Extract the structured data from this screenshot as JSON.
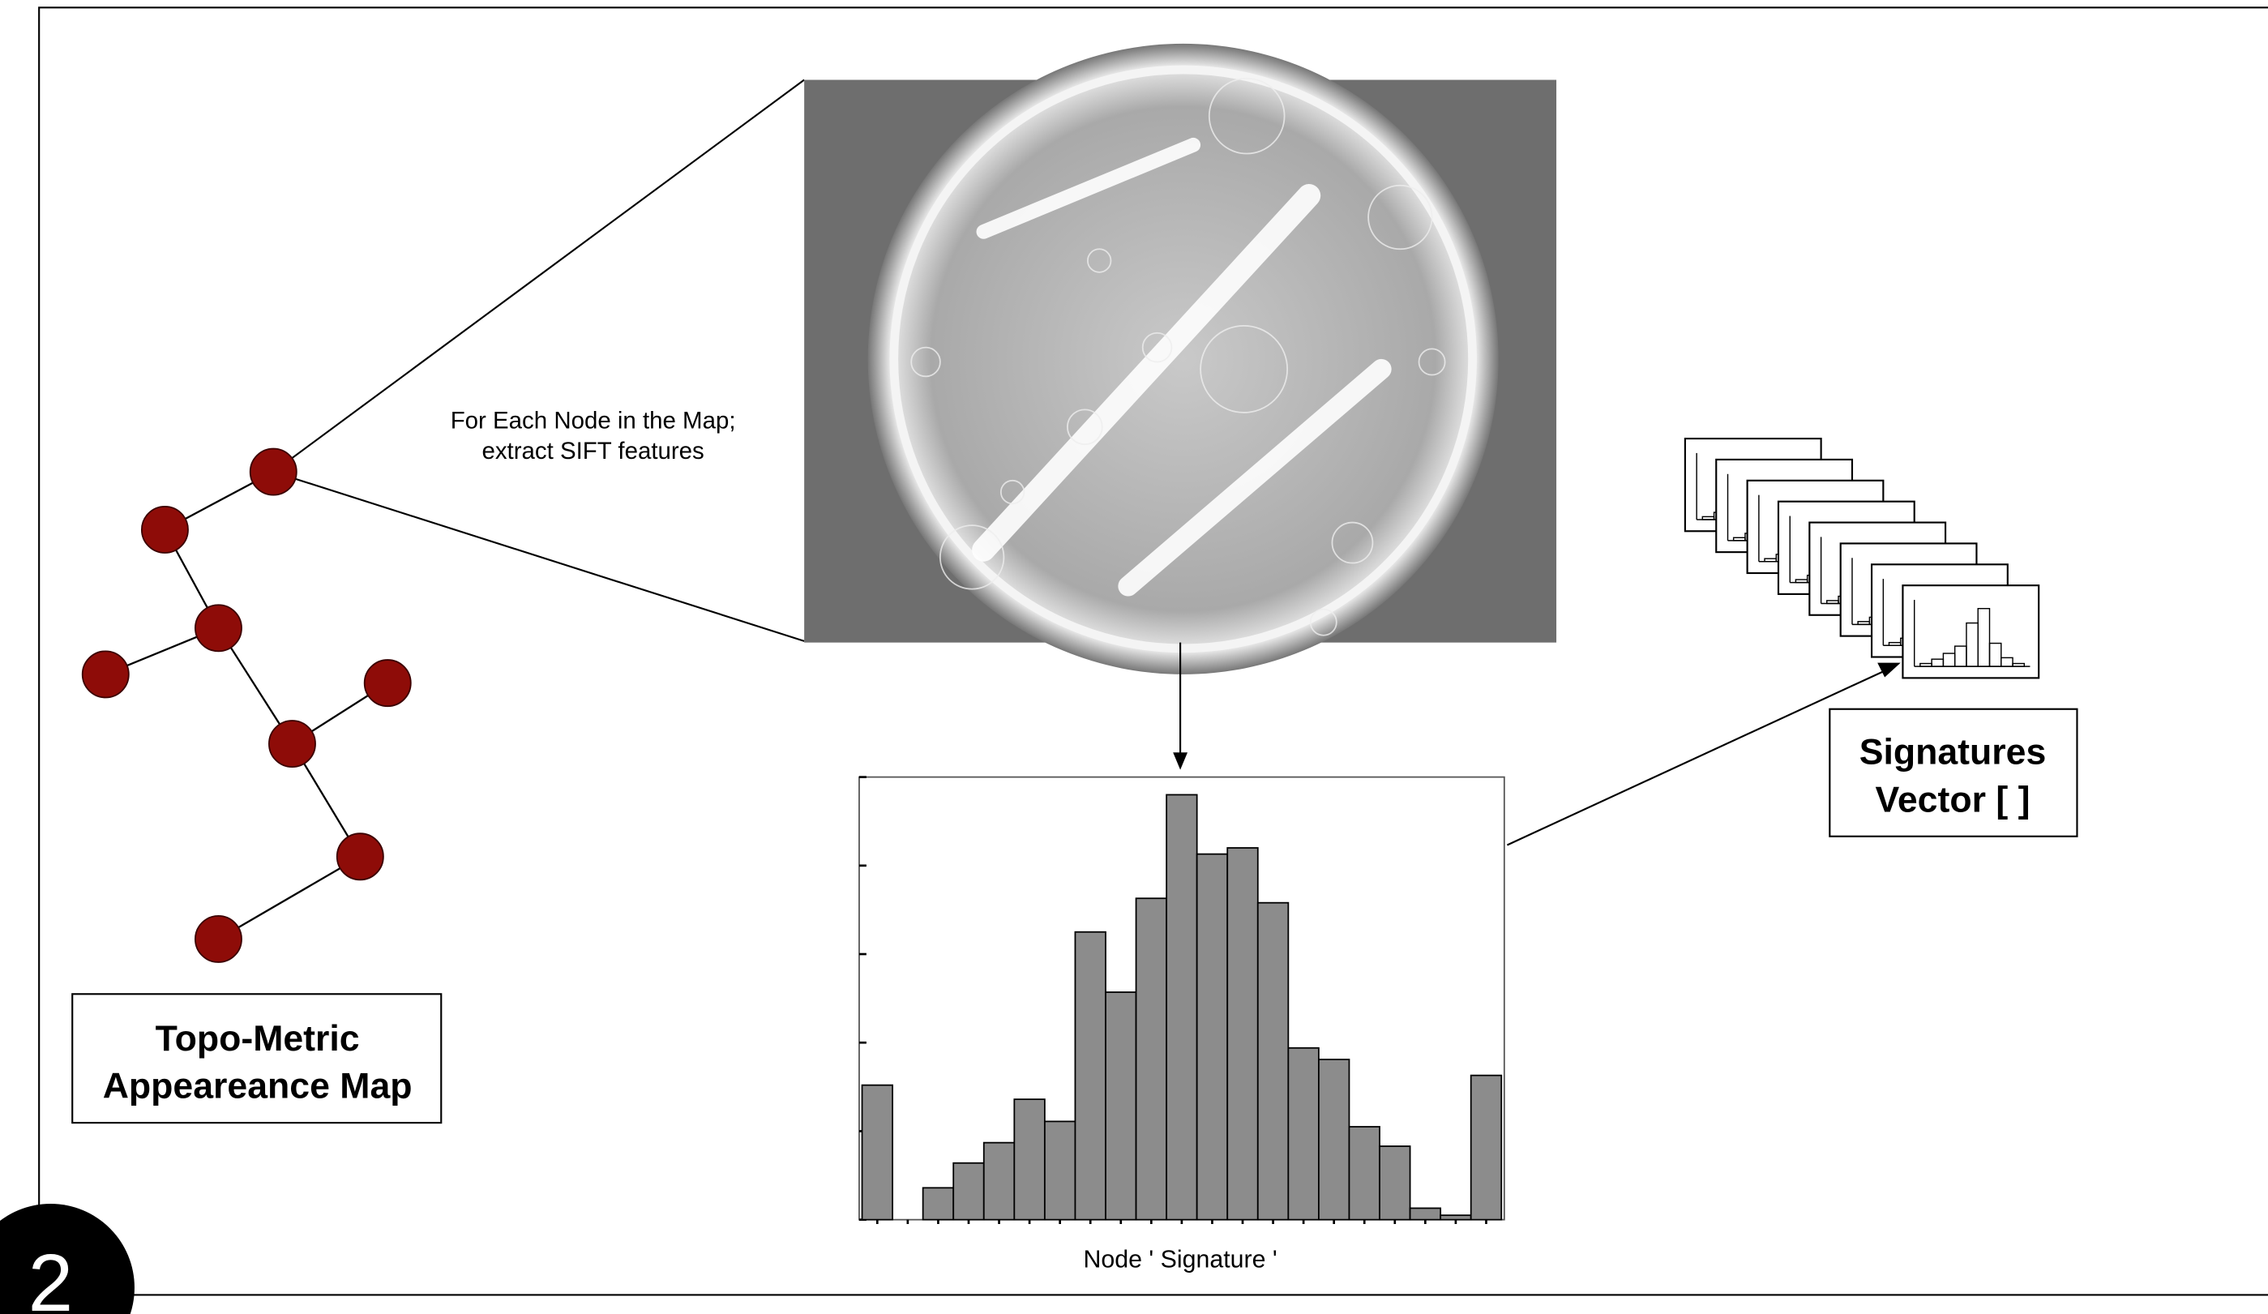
{
  "step": "2",
  "caption": {
    "lines": [
      "For Each Node in the Map;",
      "extract SIFT features"
    ]
  },
  "map_label": {
    "lines": [
      "Topo-Metric",
      "Appeareance Map"
    ]
  },
  "signatures_label": {
    "lines": [
      "Signatures",
      "Vector [ ]"
    ]
  },
  "histogram": {
    "label": "Node ' Signature '",
    "values": [
      1.52,
      0,
      0.36,
      0.64,
      0.87,
      1.36,
      1.11,
      3.25,
      2.57,
      3.63,
      4.8,
      4.13,
      4.2,
      3.58,
      1.94,
      1.81,
      1.05,
      0.83,
      0.13,
      0.05,
      1.63
    ],
    "ylim": [
      0,
      5
    ],
    "yticks": [
      0,
      1,
      2,
      3,
      4,
      5
    ]
  }
}
